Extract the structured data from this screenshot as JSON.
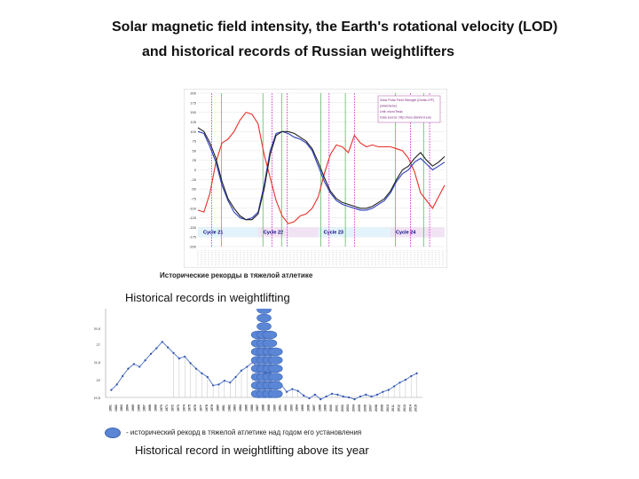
{
  "slide": {
    "title_line1": "Solar magnetic field intensity, the Earth's rotational velocity (LOD)",
    "title_line2": "and historical records of Russian weightlifters",
    "caption_historical": "Historical records in weightlifting",
    "caption_above": "Historical record in weightlifting above its year",
    "russian_title": "Исторические рекорды в тяжелой атлетике",
    "russian_legend": "- исторический рекорд в тяжелой атлетике над годом его установления"
  },
  "colors": {
    "solar_red": "#e8302a",
    "lod_blue": "#2b3fbf",
    "lod_black": "#222222",
    "cycle_band": "#e3f3fb",
    "cycle_band_pink": "#f1e3f4",
    "green_line": "#4caf50",
    "magenta_line": "#cc33cc",
    "record_blue": "#4d72c9",
    "ellipse_fill": "#5b86d6"
  },
  "chart_data": [
    {
      "type": "line",
      "ylim": [
        -200,
        200
      ],
      "yticks": [
        200,
        175,
        150,
        125,
        100,
        75,
        50,
        25,
        0,
        -25,
        -50,
        -75,
        -100,
        -125,
        -150,
        -175,
        -200
      ],
      "xlim": [
        1976,
        2017
      ],
      "cycles": [
        {
          "label": "Cycle 21",
          "start": 1976,
          "end": 1986
        },
        {
          "label": "Cycle 22",
          "start": 1986,
          "end": 1996
        },
        {
          "label": "Cycle 23",
          "start": 1996,
          "end": 2008
        },
        {
          "label": "Cycle 24",
          "start": 2008,
          "end": 2017
        }
      ],
      "green_lines": [
        1979.9,
        1986.8,
        1989.9,
        1996.4,
        2000.5,
        2008.8,
        2013.5
      ],
      "magenta_lines": [
        1978.3,
        1988.3,
        1990.8,
        1997.8,
        2002.0,
        2011.3,
        2014.5
      ],
      "legend_box": [
        "Solar Polar Field Strength (Dmlla LPF)",
        "(wiwichehe)",
        "Unit: microTesla",
        "Data source: http://wso.stanford.edu"
      ],
      "series": [
        {
          "color": "red",
          "x": [
            1976,
            1977,
            1978,
            1979,
            1980,
            1981,
            1982,
            1983,
            1984,
            1985,
            1986,
            1987,
            1988,
            1989,
            1990,
            1991,
            1992,
            1993,
            1994,
            1995,
            1996,
            1997,
            1998,
            1999,
            2000,
            2001,
            2002,
            2003,
            2004,
            2005,
            2006,
            2007,
            2008,
            2009,
            2010,
            2011,
            2012,
            2013,
            2014,
            2015,
            2016,
            2017
          ],
          "values": [
            -105,
            -110,
            -60,
            20,
            70,
            80,
            100,
            130,
            150,
            145,
            120,
            40,
            -20,
            -80,
            -120,
            -140,
            -135,
            -120,
            -115,
            -100,
            -70,
            -10,
            40,
            65,
            60,
            45,
            90,
            70,
            60,
            65,
            60,
            60,
            60,
            55,
            50,
            30,
            -5,
            -60,
            -80,
            -100,
            -70,
            -40
          ]
        },
        {
          "color": "blue",
          "x": [
            1976,
            1977,
            1978,
            1979,
            1980,
            1981,
            1982,
            1983,
            1984,
            1985,
            1986,
            1987,
            1988,
            1989,
            1990,
            1991,
            1992,
            1993,
            1994,
            1995,
            1996,
            1997,
            1998,
            1999,
            2000,
            2001,
            2002,
            2003,
            2004,
            2005,
            2006,
            2007,
            2008,
            2009,
            2010,
            2011,
            2012,
            2013,
            2014,
            2015,
            2016,
            2017
          ],
          "values": [
            100,
            95,
            60,
            20,
            -40,
            -80,
            -110,
            -125,
            -130,
            -125,
            -110,
            -40,
            50,
            95,
            100,
            95,
            85,
            80,
            70,
            50,
            10,
            -30,
            -60,
            -80,
            -90,
            -95,
            -100,
            -105,
            -105,
            -100,
            -90,
            -80,
            -60,
            -30,
            -10,
            0,
            20,
            30,
            15,
            0,
            10,
            20
          ]
        },
        {
          "color": "black",
          "x": [
            1976,
            1977,
            1978,
            1979,
            1980,
            1981,
            1982,
            1983,
            1984,
            1985,
            1986,
            1987,
            1988,
            1989,
            1990,
            1991,
            1992,
            1993,
            1994,
            1995,
            1996,
            1997,
            1998,
            1999,
            2000,
            2001,
            2002,
            2003,
            2004,
            2005,
            2006,
            2007,
            2008,
            2009,
            2010,
            2011,
            2012,
            2013,
            2014,
            2015,
            2016,
            2017
          ],
          "values": [
            110,
            100,
            70,
            30,
            -30,
            -75,
            -100,
            -120,
            -130,
            -130,
            -115,
            -50,
            40,
            90,
            100,
            100,
            95,
            85,
            75,
            55,
            20,
            -20,
            -55,
            -75,
            -85,
            -90,
            -95,
            -100,
            -100,
            -95,
            -85,
            -75,
            -55,
            -25,
            0,
            10,
            30,
            45,
            25,
            10,
            20,
            35
          ]
        }
      ]
    },
    {
      "type": "line",
      "ylim": [
        22,
        31
      ],
      "yticks": [
        {
          "value": 29.5,
          "label": "29,5"
        },
        {
          "value": 27,
          "label": "27"
        },
        {
          "value": 24.5,
          "label": "24,5"
        },
        {
          "value": 22,
          "label": "22"
        },
        {
          "value": 19.5,
          "label": "19,5"
        }
      ],
      "xlim": [
        1960,
        2016
      ],
      "xtick_labels": [
        "1961",
        "1962",
        "1963",
        "1964",
        "1965",
        "1966",
        "1967",
        "1968",
        "1969",
        "1970",
        "1971",
        "1972",
        "1973",
        "1974",
        "1975",
        "1976",
        "1977",
        "1978",
        "1979",
        "1980",
        "1981",
        "1982",
        "1983",
        "1984",
        "1985",
        "1986",
        "1987",
        "1988",
        "1989",
        "1990",
        "1991",
        "1992",
        "1993",
        "1994",
        "1995",
        "1996",
        "1997",
        "1998",
        "1999",
        "2000",
        "2001",
        "2002",
        "2003",
        "2004",
        "2005",
        "2006",
        "2007",
        "2008",
        "2009",
        "2010",
        "2011",
        "2012",
        "2013",
        "2014",
        "2015"
      ],
      "series": [
        {
          "x": [
            1961,
            1962,
            1963,
            1964,
            1965,
            1966,
            1967,
            1968,
            1969,
            1970,
            1971,
            1972,
            1973,
            1974,
            1975,
            1976,
            1977,
            1978,
            1979,
            1980,
            1981,
            1982,
            1983,
            1984,
            1985,
            1986,
            1987,
            1988,
            1989,
            1990,
            1991,
            1992,
            1993,
            1994,
            1995,
            1996,
            1997,
            1998,
            1999,
            2000,
            2001,
            2002,
            2003,
            2004,
            2005,
            2006,
            2007,
            2008,
            2009,
            2010,
            2011,
            2012,
            2013,
            2014,
            2015
          ],
          "values": [
            22.8,
            23.4,
            24.3,
            25.1,
            25.6,
            25.3,
            26,
            26.7,
            27.3,
            28,
            27.4,
            26.8,
            26.2,
            26.4,
            25.7,
            25.1,
            24.6,
            24.2,
            23.3,
            23.4,
            23.8,
            23.6,
            24.2,
            24.9,
            25.3,
            25.8,
            25.1,
            24.6,
            24.7,
            24.3,
            23.4,
            22.6,
            22.9,
            22.7,
            22.2,
            21.9,
            22.3,
            21.8,
            22.1,
            22.4,
            22.3,
            22.1,
            22,
            21.8,
            22.1,
            22.3,
            22.1,
            22.3,
            22.6,
            22.8,
            23.2,
            23.6,
            23.9,
            24.3,
            24.6
          ]
        }
      ],
      "record_stacks": [
        {
          "x": 1987,
          "count": 8
        },
        {
          "x": 1988,
          "count": 16
        },
        {
          "x": 1989,
          "count": 8
        },
        {
          "x": 1990,
          "count": 6
        }
      ]
    }
  ]
}
